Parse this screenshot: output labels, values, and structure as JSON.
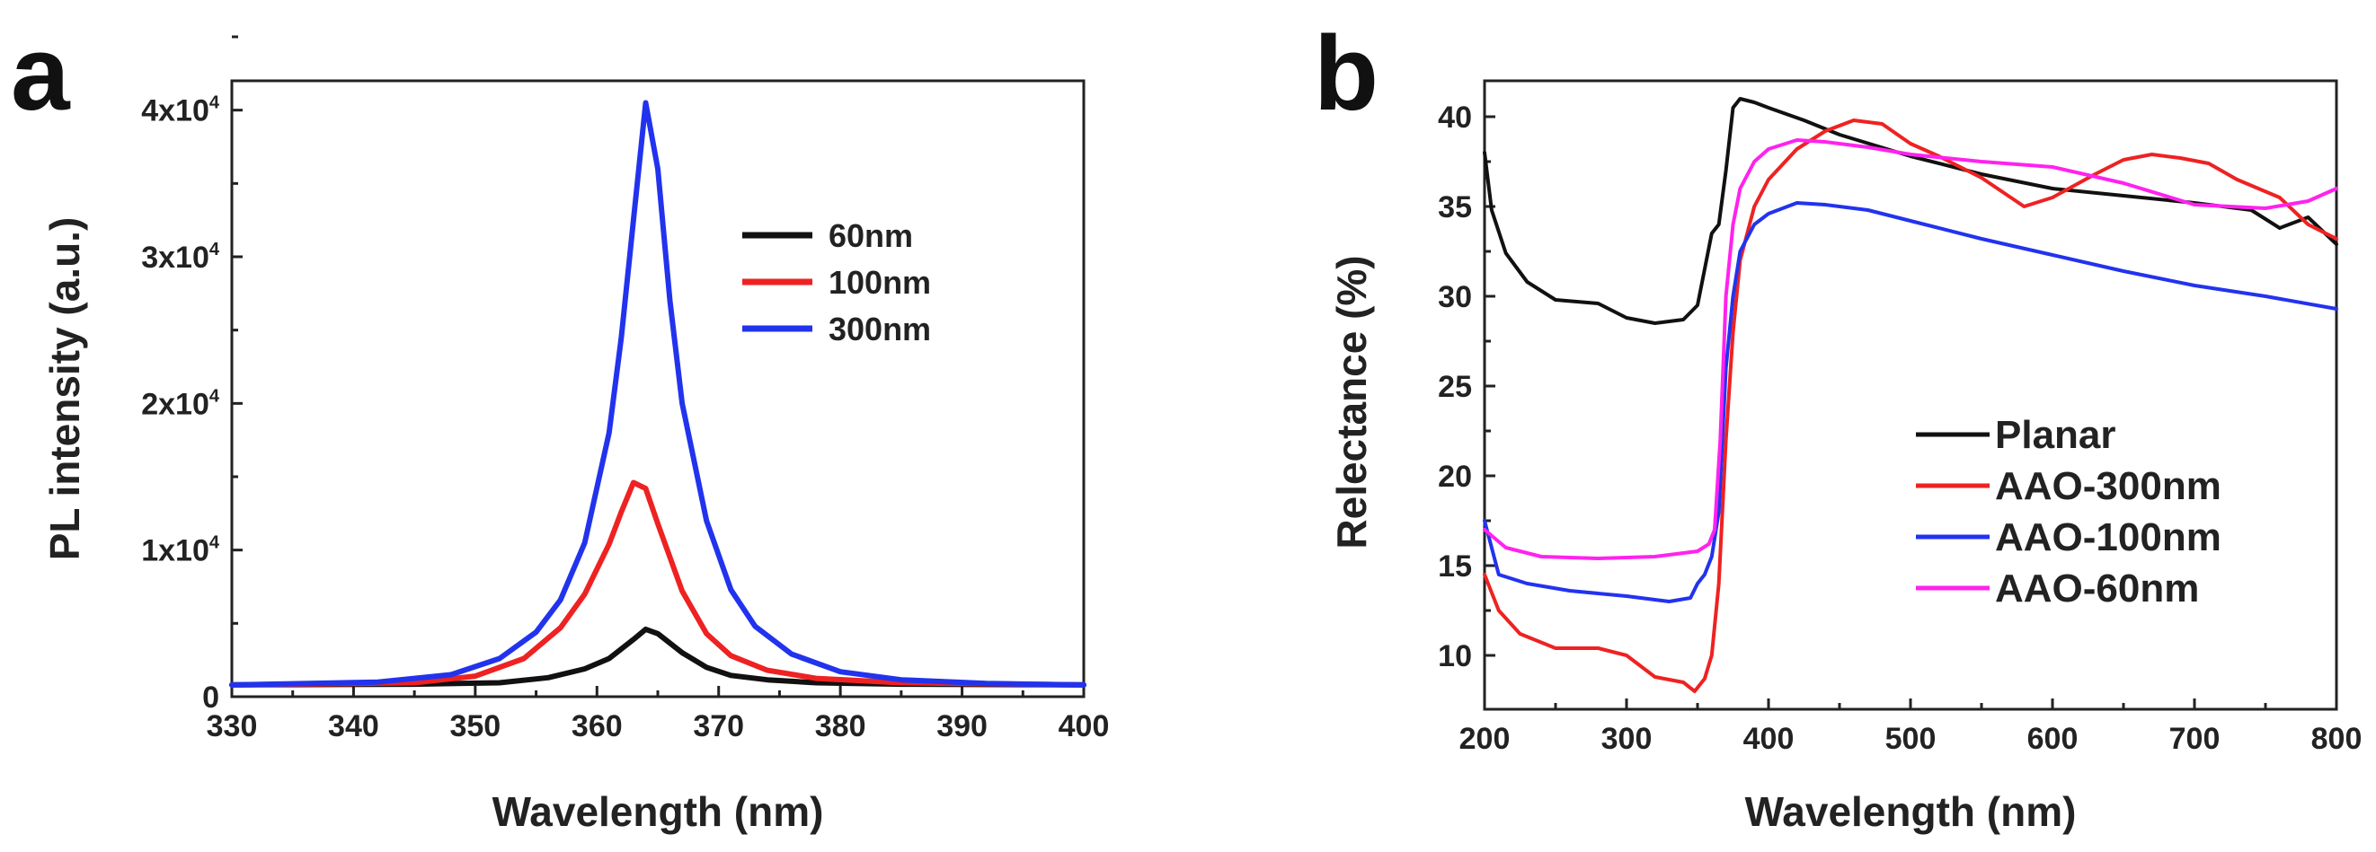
{
  "figure": {
    "panels": [
      {
        "letter": "a",
        "xlabel": "Wavelength (nm)",
        "ylabel": "PL intensity (a.u.)",
        "xticks": [
          "330",
          "340",
          "350",
          "360",
          "370",
          "380",
          "390",
          "400"
        ],
        "yticks": [
          {
            "value": 0,
            "base": "0",
            "exp": ""
          },
          {
            "value": 10000,
            "base": "1x10",
            "exp": "4"
          },
          {
            "value": 20000,
            "base": "2x10",
            "exp": "4"
          },
          {
            "value": 30000,
            "base": "3x10",
            "exp": "4"
          },
          {
            "value": 40000,
            "base": "4x10",
            "exp": "4"
          }
        ]
      },
      {
        "letter": "b",
        "xlabel": "Wavelength (nm)",
        "ylabel": "Relectance (%)",
        "xticks": [
          "200",
          "300",
          "400",
          "500",
          "600",
          "700",
          "800"
        ],
        "yticks": [
          "10",
          "15",
          "20",
          "25",
          "30",
          "35",
          "40"
        ]
      }
    ]
  },
  "chart_data": [
    {
      "type": "line",
      "title": "",
      "xlabel": "Wavelength (nm)",
      "ylabel": "PL intensity (a.u.)",
      "xlim": [
        330,
        400
      ],
      "ylim": [
        0,
        42000
      ],
      "legend_position": "top-right",
      "grid": false,
      "series": [
        {
          "name": "60nm",
          "color": "#111111",
          "x": [
            330,
            345,
            352,
            356,
            359,
            361,
            363,
            364,
            365,
            367,
            369,
            371,
            374,
            378,
            385,
            400
          ],
          "values": [
            800,
            850,
            950,
            1300,
            1900,
            2600,
            3900,
            4600,
            4300,
            3000,
            2000,
            1450,
            1150,
            950,
            850,
            800
          ]
        },
        {
          "name": "100nm",
          "color": "#ee2222",
          "x": [
            330,
            345,
            350,
            354,
            357,
            359,
            361,
            362,
            363,
            364,
            365,
            367,
            369,
            371,
            374,
            378,
            385,
            400
          ],
          "values": [
            800,
            950,
            1400,
            2600,
            4700,
            7000,
            10400,
            12600,
            14600,
            14200,
            11800,
            7200,
            4300,
            2800,
            1800,
            1250,
            950,
            800
          ]
        },
        {
          "name": "300nm",
          "color": "#2233ee",
          "x": [
            330,
            342,
            348,
            352,
            355,
            357,
            359,
            361,
            362,
            363,
            364,
            365,
            366,
            367,
            369,
            371,
            373,
            376,
            380,
            385,
            392,
            400
          ],
          "values": [
            800,
            1000,
            1500,
            2600,
            4400,
            6600,
            10500,
            18000,
            24500,
            32500,
            40500,
            36000,
            27000,
            20000,
            12000,
            7300,
            4800,
            2900,
            1700,
            1150,
            900,
            800
          ]
        }
      ]
    },
    {
      "type": "line",
      "title": "",
      "xlabel": "Wavelength (nm)",
      "ylabel": "Relectance (%)",
      "xlim": [
        200,
        800
      ],
      "ylim": [
        7,
        42
      ],
      "legend_position": "bottom-right",
      "grid": false,
      "series": [
        {
          "name": "Planar",
          "color": "#111111",
          "x": [
            200,
            205,
            215,
            230,
            250,
            280,
            300,
            320,
            340,
            350,
            355,
            360,
            365,
            370,
            375,
            380,
            390,
            400,
            425,
            450,
            475,
            500,
            550,
            600,
            650,
            700,
            740,
            760,
            780,
            800
          ],
          "values": [
            38.0,
            34.8,
            32.4,
            30.8,
            29.8,
            29.6,
            28.8,
            28.5,
            28.7,
            29.5,
            31.5,
            33.5,
            34.0,
            37.0,
            40.5,
            41.0,
            40.8,
            40.5,
            39.8,
            39.0,
            38.4,
            37.8,
            36.8,
            36.0,
            35.6,
            35.2,
            34.8,
            33.8,
            34.4,
            32.9
          ]
        },
        {
          "name": "AAO-300nm",
          "color": "#ee2222",
          "x": [
            200,
            210,
            225,
            250,
            280,
            300,
            320,
            340,
            348,
            355,
            360,
            365,
            370,
            375,
            380,
            390,
            400,
            420,
            440,
            460,
            480,
            500,
            520,
            550,
            580,
            600,
            630,
            650,
            670,
            690,
            710,
            730,
            760,
            780,
            800
          ],
          "values": [
            14.5,
            12.5,
            11.2,
            10.4,
            10.4,
            10.0,
            8.8,
            8.5,
            8.0,
            8.7,
            10.0,
            14.0,
            22.0,
            28.0,
            32.0,
            35.0,
            36.5,
            38.2,
            39.2,
            39.8,
            39.6,
            38.5,
            37.8,
            36.6,
            35.0,
            35.5,
            36.8,
            37.6,
            37.9,
            37.7,
            37.4,
            36.5,
            35.5,
            34.0,
            33.2
          ]
        },
        {
          "name": "AAO-100nm",
          "color": "#2233ee",
          "x": [
            200,
            210,
            230,
            260,
            300,
            330,
            345,
            350,
            355,
            360,
            365,
            370,
            375,
            380,
            390,
            400,
            420,
            440,
            470,
            500,
            550,
            600,
            650,
            700,
            750,
            800
          ],
          "values": [
            17.5,
            14.5,
            14.0,
            13.6,
            13.3,
            13.0,
            13.2,
            14.0,
            14.5,
            15.5,
            18.0,
            26.0,
            30.0,
            32.5,
            34.0,
            34.6,
            35.2,
            35.1,
            34.8,
            34.2,
            33.2,
            32.3,
            31.4,
            30.6,
            30.0,
            29.3
          ]
        },
        {
          "name": "AAO-60nm",
          "color": "#ff22ee",
          "x": [
            200,
            215,
            240,
            280,
            320,
            350,
            358,
            362,
            366,
            370,
            375,
            380,
            390,
            400,
            420,
            440,
            470,
            500,
            550,
            600,
            650,
            700,
            750,
            780,
            800
          ],
          "values": [
            17.0,
            16.0,
            15.5,
            15.4,
            15.5,
            15.8,
            16.2,
            17.0,
            22.0,
            30.0,
            34.0,
            36.0,
            37.5,
            38.2,
            38.7,
            38.6,
            38.3,
            37.9,
            37.5,
            37.2,
            36.3,
            35.1,
            34.9,
            35.3,
            36.0
          ]
        }
      ]
    }
  ]
}
